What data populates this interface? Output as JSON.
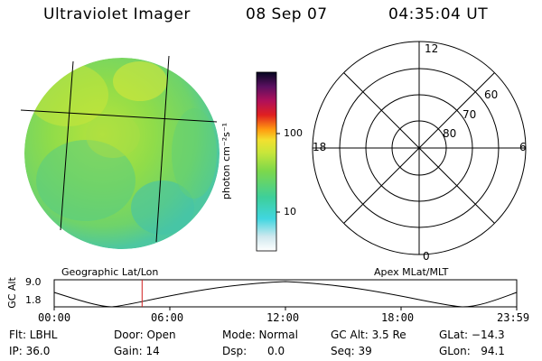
{
  "header": {
    "title": "Ultraviolet Imager",
    "date": "08 Sep 07",
    "time": "04:35:04 UT"
  },
  "colorbar": {
    "unit_label": "photon cm⁻²s⁻¹",
    "tick_100": "100",
    "tick_10": "10"
  },
  "polar_plot": {
    "mlt_12": "12",
    "mlt_18": "18",
    "mlt_6": "6",
    "mlt_0": "0",
    "lat_60": "60",
    "lat_70": "70",
    "lat_80": "80"
  },
  "captions": {
    "left": "Geographic Lat/Lon",
    "right": "Apex MLat/MLT"
  },
  "altitude_plot": {
    "ylabel": "GC Alt",
    "ytick_top": "9.0",
    "ytick_bottom": "1.8",
    "xticks": [
      "00:00",
      "06:00",
      "12:00",
      "18:00",
      "23:59"
    ],
    "current_time_fraction": 0.19
  },
  "info": {
    "flt": "Flt: LBHL",
    "ip": "IP: 36.0",
    "door": "Door: Open",
    "gain": "Gain: 14",
    "mode": "Mode: Normal",
    "dsp": "Dsp:      0.0",
    "gcalt": "GC Alt: 3.5 Re",
    "seq": "Seq: 39",
    "glat": "GLat: −14.3",
    "glon": "GLon:   94.1"
  }
}
